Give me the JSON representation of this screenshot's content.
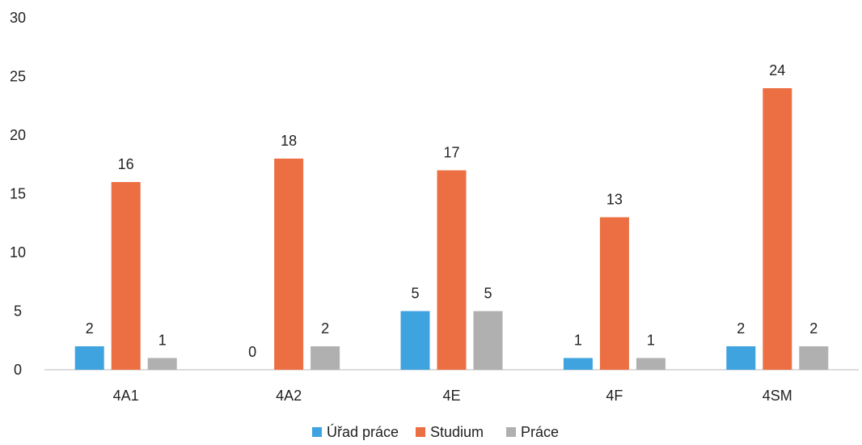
{
  "chart_data": {
    "type": "bar",
    "title": "",
    "xlabel": "",
    "ylabel": "",
    "categories": [
      "4A1",
      "4A2",
      "4E",
      "4F",
      "4SM"
    ],
    "series": [
      {
        "name": "Úřad práce",
        "values": [
          2,
          0,
          5,
          1,
          2
        ],
        "color": "#3fa3e0"
      },
      {
        "name": "Studium",
        "values": [
          16,
          18,
          17,
          13,
          24
        ],
        "color": "#ec6f43"
      },
      {
        "name": "Práce",
        "values": [
          1,
          2,
          5,
          1,
          2
        ],
        "color": "#b0b0b0"
      }
    ],
    "ylim": [
      0,
      30
    ],
    "yticks": [
      0,
      5,
      10,
      15,
      20,
      25,
      30
    ],
    "grid": false,
    "legend": "bottom-center",
    "data_labels": true
  }
}
